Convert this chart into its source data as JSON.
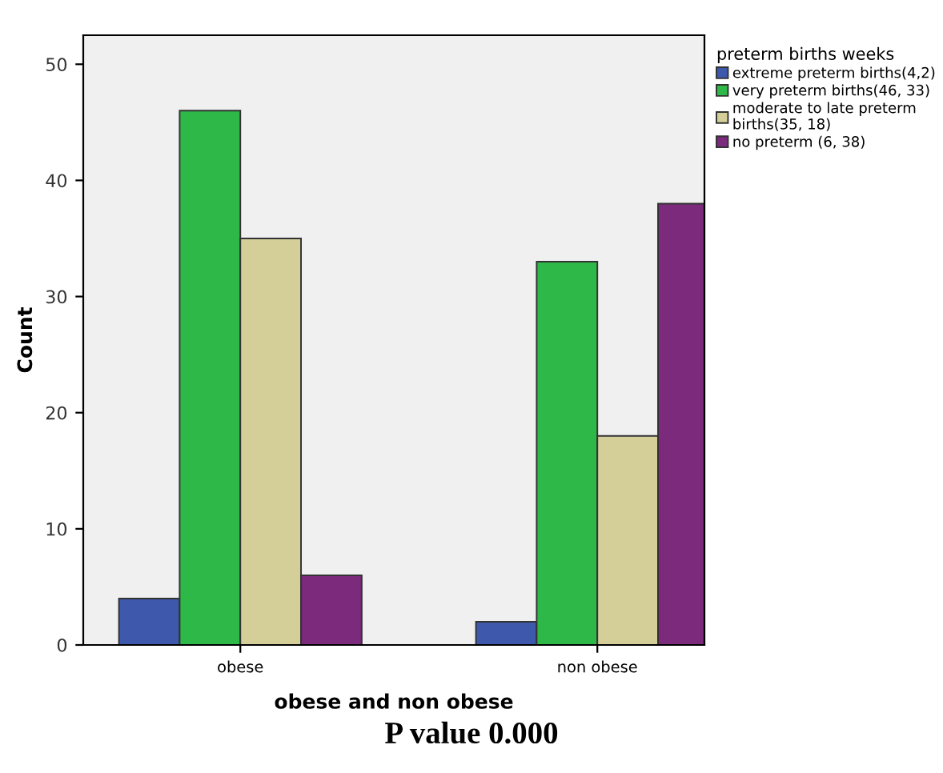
{
  "chart_data": {
    "type": "bar",
    "xlabel": "obese and non obese",
    "ylabel": "Count",
    "legend_title": "preterm births weeks",
    "categories": [
      "obese",
      "non obese"
    ],
    "series": [
      {
        "name": "extreme preterm births(4,2)",
        "color": "#3e58ac",
        "values": [
          4,
          2
        ]
      },
      {
        "name": "very preterm births(46, 33)",
        "color": "#2eb848",
        "values": [
          46,
          33
        ]
      },
      {
        "name": "moderate to late preterm\nbirths(35, 18)",
        "color": "#d4cf98",
        "values": [
          35,
          18
        ]
      },
      {
        "name": "no preterm (6, 38)",
        "color": "#7b2a7c",
        "values": [
          6,
          38
        ]
      }
    ],
    "ylim": [
      0,
      52.5
    ],
    "yticks": [
      0,
      10,
      20,
      30,
      40,
      50
    ],
    "grid": false,
    "legend": "right",
    "annotations": [
      "P value 0.000"
    ]
  }
}
